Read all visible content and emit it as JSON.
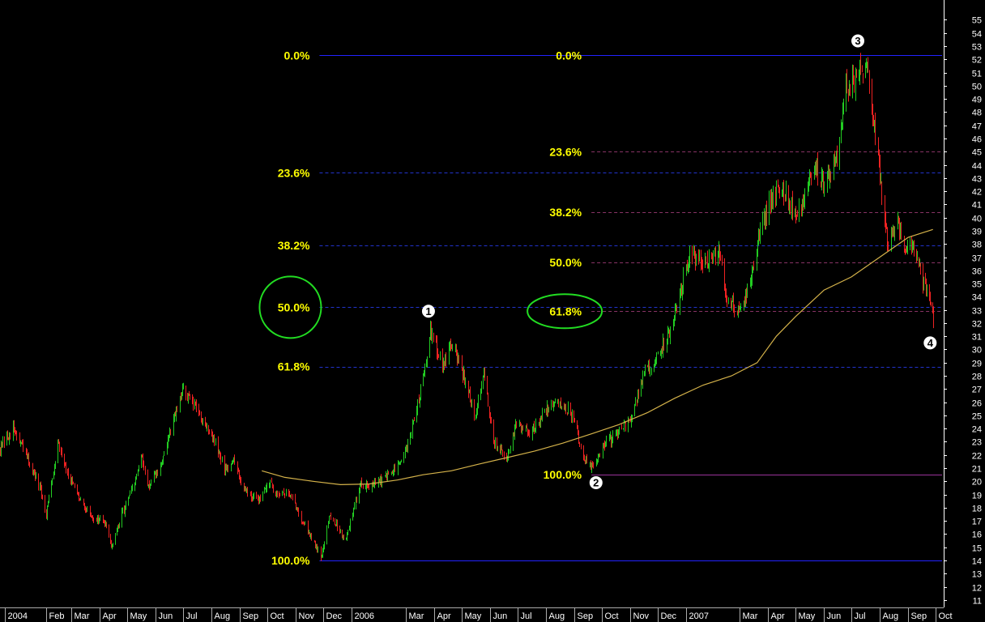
{
  "colors": {
    "background": "#000000",
    "axis_text": "#ffffff",
    "up_candle": "#22cc22",
    "down_candle": "#ee2222",
    "fib_label": "#ffff00",
    "fib_line_solid": "#2222ff",
    "fib_line_dashed_primary": "#2233cc",
    "fib_line_dashed_secondary": "#883366",
    "fib_line_base_secondary": "#993399",
    "moving_average": "#d4b24a",
    "highlight_circle": "#22dd22",
    "marker_fill": "#ffffff",
    "marker_text": "#000000",
    "separator": "#aaaaaa"
  },
  "chart_data": {
    "type": "candlestick",
    "title": "",
    "y_axis": {
      "side": "right",
      "min": 10.5,
      "max": 56.5,
      "ticks": [
        11,
        12,
        13,
        14,
        15,
        16,
        17,
        18,
        19,
        20,
        21,
        22,
        23,
        24,
        25,
        26,
        27,
        28,
        29,
        30,
        31,
        32,
        33,
        34,
        35,
        36,
        37,
        38,
        39,
        40,
        41,
        42,
        43,
        44,
        45,
        46,
        47,
        48,
        49,
        50,
        51,
        52,
        53,
        54,
        55
      ]
    },
    "x_axis": {
      "start": "2004-12-13",
      "end": "2007-10-08",
      "labels": [
        {
          "text": "2004",
          "date": "2004-12-18"
        },
        {
          "text": "Feb",
          "date": "2005-02-01"
        },
        {
          "text": "Mar",
          "date": "2005-03-01"
        },
        {
          "text": "Apr",
          "date": "2005-04-01"
        },
        {
          "text": "May",
          "date": "2005-05-01"
        },
        {
          "text": "Jun",
          "date": "2005-06-01"
        },
        {
          "text": "Jul",
          "date": "2005-07-01"
        },
        {
          "text": "Aug",
          "date": "2005-08-01"
        },
        {
          "text": "Sep",
          "date": "2005-09-01"
        },
        {
          "text": "Oct",
          "date": "2005-10-01"
        },
        {
          "text": "Nov",
          "date": "2005-11-01"
        },
        {
          "text": "Dec",
          "date": "2005-12-01"
        },
        {
          "text": "2006",
          "date": "2006-01-01"
        },
        {
          "text": "Mar",
          "date": "2006-03-01"
        },
        {
          "text": "Apr",
          "date": "2006-04-01"
        },
        {
          "text": "May",
          "date": "2006-05-01"
        },
        {
          "text": "Jun",
          "date": "2006-06-01"
        },
        {
          "text": "Jul",
          "date": "2006-07-01"
        },
        {
          "text": "Aug",
          "date": "2006-08-01"
        },
        {
          "text": "Sep",
          "date": "2006-09-01"
        },
        {
          "text": "Oct",
          "date": "2006-10-01"
        },
        {
          "text": "Nov",
          "date": "2006-11-01"
        },
        {
          "text": "Dec",
          "date": "2006-12-01"
        },
        {
          "text": "2007",
          "date": "2007-01-01"
        },
        {
          "text": "Mar",
          "date": "2007-03-01"
        },
        {
          "text": "Apr",
          "date": "2007-04-01"
        },
        {
          "text": "May",
          "date": "2007-05-01"
        },
        {
          "text": "Jun",
          "date": "2007-06-01"
        },
        {
          "text": "Jul",
          "date": "2007-07-01"
        },
        {
          "text": "Aug",
          "date": "2007-08-01"
        },
        {
          "text": "Sep",
          "date": "2007-09-01"
        },
        {
          "text": "Oct",
          "date": "2007-10-01"
        }
      ]
    },
    "price_path": [
      [
        "2004-12-13",
        22.5
      ],
      [
        "2004-12-27",
        24.0
      ],
      [
        "2005-01-10",
        22.0
      ],
      [
        "2005-01-25",
        19.5
      ],
      [
        "2005-02-01",
        17.5
      ],
      [
        "2005-02-14",
        23.0
      ],
      [
        "2005-02-28",
        20.0
      ],
      [
        "2005-03-10",
        18.5
      ],
      [
        "2005-03-25",
        17.2
      ],
      [
        "2005-04-05",
        17.0
      ],
      [
        "2005-04-14",
        15.0
      ],
      [
        "2005-04-25",
        17.5
      ],
      [
        "2005-05-10",
        20.0
      ],
      [
        "2005-05-15",
        22.0
      ],
      [
        "2005-05-25",
        19.5
      ],
      [
        "2005-06-05",
        21.0
      ],
      [
        "2005-06-20",
        24.5
      ],
      [
        "2005-07-01",
        27.0
      ],
      [
        "2005-07-10",
        26.0
      ],
      [
        "2005-07-20",
        25.0
      ],
      [
        "2005-08-01",
        23.5
      ],
      [
        "2005-08-15",
        21.0
      ],
      [
        "2005-08-25",
        21.5
      ],
      [
        "2005-09-05",
        19.5
      ],
      [
        "2005-09-20",
        18.5
      ],
      [
        "2005-10-01",
        20.0
      ],
      [
        "2005-10-10",
        19.2
      ],
      [
        "2005-10-25",
        19.0
      ],
      [
        "2005-11-05",
        17.5
      ],
      [
        "2005-11-20",
        15.5
      ],
      [
        "2005-11-28",
        14.2
      ],
      [
        "2005-12-08",
        17.5
      ],
      [
        "2005-12-25",
        15.5
      ],
      [
        "2006-01-10",
        19.8
      ],
      [
        "2006-01-25",
        19.7
      ],
      [
        "2006-02-10",
        20.5
      ],
      [
        "2006-02-25",
        21.5
      ],
      [
        "2006-03-08",
        24.0
      ],
      [
        "2006-03-20",
        28.0
      ],
      [
        "2006-03-28",
        31.5
      ],
      [
        "2006-04-10",
        29.0
      ],
      [
        "2006-04-20",
        30.5
      ],
      [
        "2006-05-01",
        28.5
      ],
      [
        "2006-05-15",
        25.0
      ],
      [
        "2006-05-25",
        28.0
      ],
      [
        "2006-06-05",
        23.0
      ],
      [
        "2006-06-20",
        21.8
      ],
      [
        "2006-07-01",
        24.5
      ],
      [
        "2006-07-15",
        23.5
      ],
      [
        "2006-08-01",
        25.5
      ],
      [
        "2006-08-15",
        26.0
      ],
      [
        "2006-09-01",
        25.0
      ],
      [
        "2006-09-10",
        22.0
      ],
      [
        "2006-09-20",
        21.0
      ],
      [
        "2006-10-01",
        22.5
      ],
      [
        "2006-10-15",
        23.5
      ],
      [
        "2006-11-01",
        24.5
      ],
      [
        "2006-11-15",
        28.0
      ],
      [
        "2006-12-01",
        29.5
      ],
      [
        "2006-12-15",
        31.5
      ],
      [
        "2006-12-25",
        34.0
      ],
      [
        "2007-01-05",
        37.5
      ],
      [
        "2007-01-20",
        36.5
      ],
      [
        "2007-02-05",
        37.5
      ],
      [
        "2007-02-15",
        34.0
      ],
      [
        "2007-02-25",
        33.0
      ],
      [
        "2007-03-10",
        34.5
      ],
      [
        "2007-03-20",
        38.0
      ],
      [
        "2007-04-01",
        41.0
      ],
      [
        "2007-04-15",
        42.5
      ],
      [
        "2007-04-25",
        41.0
      ],
      [
        "2007-05-05",
        40.5
      ],
      [
        "2007-05-20",
        44.0
      ],
      [
        "2007-06-01",
        42.5
      ],
      [
        "2007-06-15",
        45.0
      ],
      [
        "2007-06-25",
        50.0
      ],
      [
        "2007-07-05",
        50.5
      ],
      [
        "2007-07-10",
        52.0
      ],
      [
        "2007-07-18",
        51.0
      ],
      [
        "2007-07-25",
        47.0
      ],
      [
        "2007-08-01",
        43.0
      ],
      [
        "2007-08-10",
        38.0
      ],
      [
        "2007-08-20",
        40.0
      ],
      [
        "2007-08-28",
        37.0
      ],
      [
        "2007-09-05",
        38.0
      ],
      [
        "2007-09-15",
        35.5
      ],
      [
        "2007-09-22",
        34.5
      ],
      [
        "2007-09-28",
        32.5
      ]
    ],
    "moving_average": [
      [
        "2005-09-25",
        20.8
      ],
      [
        "2005-10-20",
        20.3
      ],
      [
        "2005-11-20",
        20.0
      ],
      [
        "2005-12-20",
        19.75
      ],
      [
        "2006-01-20",
        19.8
      ],
      [
        "2006-02-20",
        20.1
      ],
      [
        "2006-03-20",
        20.5
      ],
      [
        "2006-04-20",
        20.8
      ],
      [
        "2006-05-20",
        21.3
      ],
      [
        "2006-06-20",
        21.8
      ],
      [
        "2006-07-20",
        22.3
      ],
      [
        "2006-08-20",
        22.9
      ],
      [
        "2006-09-20",
        23.6
      ],
      [
        "2006-10-20",
        24.3
      ],
      [
        "2006-11-20",
        25.2
      ],
      [
        "2006-12-20",
        26.3
      ],
      [
        "2007-01-20",
        27.3
      ],
      [
        "2007-02-20",
        28.0
      ],
      [
        "2007-03-20",
        29.0
      ],
      [
        "2007-04-10",
        31.0
      ],
      [
        "2007-05-01",
        32.5
      ],
      [
        "2007-06-01",
        34.5
      ],
      [
        "2007-07-01",
        35.5
      ],
      [
        "2007-08-01",
        37.0
      ],
      [
        "2007-09-01",
        38.5
      ],
      [
        "2007-09-28",
        39.1
      ]
    ],
    "fib_sets": [
      {
        "name": "primary",
        "x_start": "2005-11-27",
        "levels": [
          {
            "label": "0.0%",
            "price": 52.3,
            "style": "solid"
          },
          {
            "label": "23.6%",
            "price": 43.4,
            "style": "dashed"
          },
          {
            "label": "38.2%",
            "price": 37.9,
            "style": "dashed"
          },
          {
            "label": "50.0%",
            "price": 33.2,
            "style": "dashed"
          },
          {
            "label": "61.8%",
            "price": 28.7,
            "style": "dashed"
          },
          {
            "label": "100.0%",
            "price": 14.0,
            "style": "solid"
          }
        ]
      },
      {
        "name": "secondary",
        "x_start": "2006-09-20",
        "levels": [
          {
            "label": "0.0%",
            "price": 52.3,
            "style": "solid"
          },
          {
            "label": "23.6%",
            "price": 45.0,
            "style": "dashed"
          },
          {
            "label": "38.2%",
            "price": 40.4,
            "style": "dashed"
          },
          {
            "label": "50.0%",
            "price": 36.6,
            "style": "dashed"
          },
          {
            "label": "61.8%",
            "price": 32.9,
            "style": "dashed"
          },
          {
            "label": "100.0%",
            "price": 20.5,
            "style": "solid"
          }
        ]
      }
    ],
    "wave_markers": [
      {
        "label": "1",
        "date": "2006-03-26",
        "price": 32.9
      },
      {
        "label": "2",
        "date": "2006-09-25",
        "price": 19.9
      },
      {
        "label": "3",
        "date": "2007-07-08",
        "price": 53.4
      },
      {
        "label": "4",
        "date": "2007-09-25",
        "price": 30.5
      }
    ],
    "highlighted_levels": [
      {
        "set": "primary",
        "label": "50.0%"
      },
      {
        "set": "secondary",
        "label": "61.8%"
      }
    ]
  }
}
